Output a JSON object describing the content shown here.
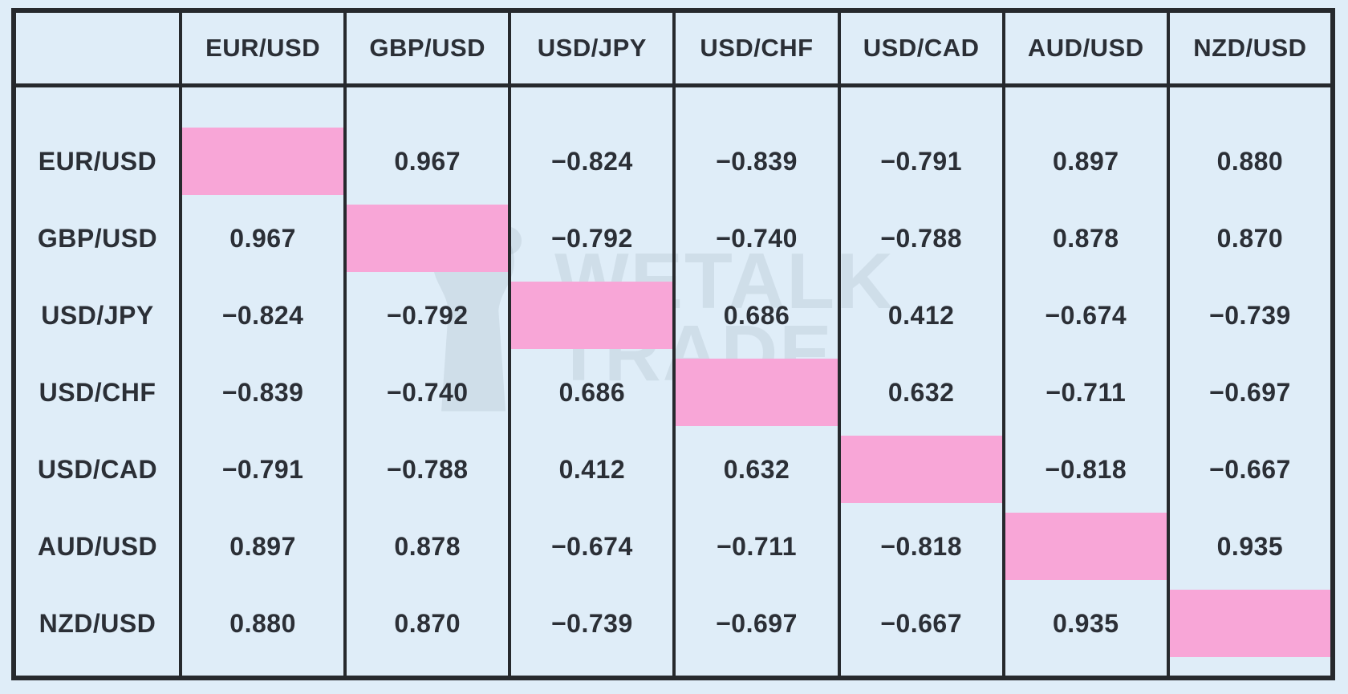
{
  "colors": {
    "background": "#dfedf8",
    "diagonal_pink": "#f8a6d7",
    "grid_border": "#26292d",
    "text": "#2b2f36",
    "watermark": "#7a8f9b"
  },
  "watermark": {
    "line1": "WETALK",
    "line2": "TRADE"
  },
  "table": {
    "corner_label": "",
    "columns": [
      "EUR/USD",
      "GBP/USD",
      "USD/JPY",
      "USD/CHF",
      "USD/CAD",
      "AUD/USD",
      "NZD/USD"
    ],
    "rows": [
      {
        "label": "EUR/USD",
        "cells": [
          null,
          "0.967",
          "−0.824",
          "−0.839",
          "−0.791",
          "0.897",
          "0.880"
        ]
      },
      {
        "label": "GBP/USD",
        "cells": [
          "0.967",
          null,
          "−0.792",
          "−0.740",
          "−0.788",
          "0.878",
          "0.870"
        ]
      },
      {
        "label": "USD/JPY",
        "cells": [
          "−0.824",
          "−0.792",
          null,
          "0.686",
          "0.412",
          "−0.674",
          "−0.739"
        ]
      },
      {
        "label": "USD/CHF",
        "cells": [
          "−0.839",
          "−0.740",
          "0.686",
          null,
          "0.632",
          "−0.711",
          "−0.697"
        ]
      },
      {
        "label": "USD/CAD",
        "cells": [
          "−0.791",
          "−0.788",
          "0.412",
          "0.632",
          null,
          "−0.818",
          "−0.667"
        ]
      },
      {
        "label": "AUD/USD",
        "cells": [
          "0.897",
          "0.878",
          "−0.674",
          "−0.711",
          "−0.818",
          null,
          "0.935"
        ]
      },
      {
        "label": "NZD/USD",
        "cells": [
          "0.880",
          "0.870",
          "−0.739",
          "−0.697",
          "−0.667",
          "0.935",
          null
        ]
      }
    ]
  },
  "chart_data": {
    "type": "heatmap",
    "subtype": "currency-correlation-matrix",
    "categories": [
      "EUR/USD",
      "GBP/USD",
      "USD/JPY",
      "USD/CHF",
      "USD/CAD",
      "AUD/USD",
      "NZD/USD"
    ],
    "matrix": [
      [
        null,
        0.967,
        -0.824,
        -0.839,
        -0.791,
        0.897,
        0.88
      ],
      [
        0.967,
        null,
        -0.792,
        -0.74,
        -0.788,
        0.878,
        0.87
      ],
      [
        -0.824,
        -0.792,
        null,
        0.686,
        0.412,
        -0.674,
        -0.739
      ],
      [
        -0.839,
        -0.74,
        0.686,
        null,
        0.632,
        -0.711,
        -0.697
      ],
      [
        -0.791,
        -0.788,
        0.412,
        0.632,
        null,
        -0.818,
        -0.667
      ],
      [
        0.897,
        0.878,
        -0.674,
        -0.711,
        -0.818,
        null,
        0.935
      ],
      [
        0.88,
        0.87,
        -0.739,
        -0.697,
        -0.667,
        0.935,
        null
      ]
    ],
    "value_decimals": 3,
    "diagonal_highlight_color": "#f8a6d7",
    "grid": true,
    "legend": false,
    "title": ""
  }
}
